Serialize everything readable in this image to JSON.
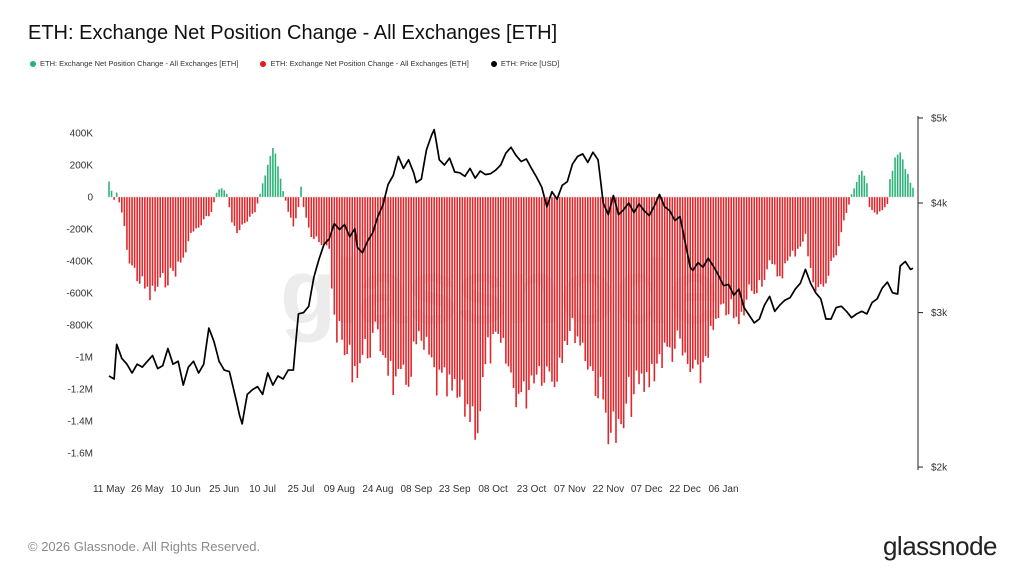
{
  "title": "ETH: Exchange Net Position Change - All Exchanges [ETH]",
  "legend": [
    {
      "label": "ETH: Exchange Net Position Change - All Exchanges [ETH]",
      "color": "#1fb57a"
    },
    {
      "label": "ETH: Exchange Net Position Change - All Exchanges [ETH]",
      "color": "#e31a1c"
    },
    {
      "label": "ETH: Price [USD]",
      "color": "#000000"
    }
  ],
  "footer": "© 2026 Glassnode. All Rights Reserved.",
  "logo": "glassnode",
  "watermark": "glassnode",
  "colors": {
    "positive": "#2ab477",
    "negative": "#e0262a",
    "price": "#000000"
  },
  "chart_data": {
    "type": "bar",
    "x_start": "2025-05-11",
    "x_end": "2026-01-14",
    "x_ticks": [
      "11 May",
      "26 May",
      "10 Jun",
      "25 Jun",
      "10 Jul",
      "25 Jul",
      "09 Aug",
      "24 Aug",
      "08 Sep",
      "23 Sep",
      "08 Oct",
      "23 Oct",
      "07 Nov",
      "22 Nov",
      "07 Dec",
      "22 Dec",
      "06 Jan"
    ],
    "y_left_ticks": [
      "400K",
      "200K",
      "0",
      "-200K",
      "-400K",
      "-600K",
      "-800K",
      "-1M",
      "-1.2M",
      "-1.4M",
      "-1.6M"
    ],
    "ylim_left": [
      -1650000,
      480000
    ],
    "y_right_ticks": [
      "$5k",
      "$4k",
      "$3k",
      "$2k"
    ],
    "y_right_scale": "log",
    "ylim_right": [
      2000,
      5000
    ],
    "series": [
      {
        "name": "ETH: Exchange Net Position Change - All Exchanges [ETH]",
        "axis": "left",
        "anchors": [
          [
            0,
            100000
          ],
          [
            2,
            -20000
          ],
          [
            3,
            30000
          ],
          [
            5,
            -100000
          ],
          [
            8,
            -420000
          ],
          [
            12,
            -540000
          ],
          [
            16,
            -640000
          ],
          [
            20,
            -560000
          ],
          [
            24,
            -500000
          ],
          [
            28,
            -430000
          ],
          [
            31,
            -300000
          ],
          [
            33,
            -200000
          ],
          [
            35,
            -210000
          ],
          [
            37,
            -150000
          ],
          [
            40,
            -100000
          ],
          [
            42,
            30000
          ],
          [
            44,
            60000
          ],
          [
            46,
            20000
          ],
          [
            48,
            -160000
          ],
          [
            50,
            -220000
          ],
          [
            53,
            -180000
          ],
          [
            57,
            -100000
          ],
          [
            60,
            80000
          ],
          [
            62,
            210000
          ],
          [
            64,
            320000
          ],
          [
            66,
            200000
          ],
          [
            68,
            40000
          ],
          [
            70,
            -90000
          ],
          [
            72,
            -200000
          ],
          [
            74,
            -60000
          ],
          [
            75,
            60000
          ],
          [
            76,
            -60000
          ],
          [
            79,
            -250000
          ],
          [
            83,
            -320000
          ],
          [
            86,
            -320000
          ],
          [
            88,
            -800000
          ],
          [
            92,
            -1000000
          ],
          [
            96,
            -1100000
          ],
          [
            100,
            -1000000
          ],
          [
            104,
            -900000
          ],
          [
            108,
            -1000000
          ],
          [
            112,
            -1250000
          ],
          [
            116,
            -1200000
          ],
          [
            120,
            -950000
          ],
          [
            124,
            -1000000
          ],
          [
            128,
            -1200000
          ],
          [
            132,
            -1250000
          ],
          [
            136,
            -1300000
          ],
          [
            140,
            -1350000
          ],
          [
            144,
            -1450000
          ],
          [
            148,
            -1000000
          ],
          [
            152,
            -950000
          ],
          [
            155,
            -1050000
          ],
          [
            158,
            -1220000
          ],
          [
            162,
            -1300000
          ],
          [
            166,
            -1100000
          ],
          [
            170,
            -1100000
          ],
          [
            174,
            -1150000
          ],
          [
            178,
            -900000
          ],
          [
            182,
            -850000
          ],
          [
            186,
            -1000000
          ],
          [
            190,
            -1180000
          ],
          [
            194,
            -1400000
          ],
          [
            197,
            -1500000
          ],
          [
            200,
            -1570000
          ],
          [
            203,
            -1300000
          ],
          [
            206,
            -1250000
          ],
          [
            210,
            -1200000
          ],
          [
            214,
            -1050000
          ],
          [
            218,
            -1000000
          ],
          [
            222,
            -950000
          ],
          [
            226,
            -1100000
          ],
          [
            230,
            -1200000
          ],
          [
            234,
            -950000
          ],
          [
            238,
            -800000
          ],
          [
            242,
            -700000
          ],
          [
            246,
            -850000
          ],
          [
            250,
            -600000
          ],
          [
            254,
            -550000
          ],
          [
            258,
            -450000
          ],
          [
            262,
            -500000
          ],
          [
            266,
            -400000
          ],
          [
            270,
            -300000
          ],
          [
            272,
            -250000
          ],
          [
            274,
            -500000
          ],
          [
            276,
            -550000
          ],
          [
            279,
            -600000
          ],
          [
            282,
            -450000
          ],
          [
            285,
            -300000
          ],
          [
            287,
            -150000
          ],
          [
            289,
            -50000
          ],
          [
            290,
            20000
          ],
          [
            292,
            100000
          ],
          [
            294,
            160000
          ],
          [
            296,
            90000
          ],
          [
            297,
            -60000
          ],
          [
            299,
            -110000
          ],
          [
            302,
            -90000
          ],
          [
            304,
            -50000
          ],
          [
            305,
            120000
          ],
          [
            307,
            230000
          ],
          [
            309,
            280000
          ],
          [
            311,
            200000
          ],
          [
            313,
            100000
          ],
          [
            314,
            60000
          ]
        ]
      },
      {
        "name": "ETH: Price [USD]",
        "axis": "right",
        "anchors": [
          [
            0,
            2540
          ],
          [
            2,
            2520
          ],
          [
            3,
            2760
          ],
          [
            5,
            2660
          ],
          [
            7,
            2620
          ],
          [
            9,
            2560
          ],
          [
            11,
            2620
          ],
          [
            13,
            2600
          ],
          [
            15,
            2640
          ],
          [
            17,
            2680
          ],
          [
            19,
            2590
          ],
          [
            21,
            2610
          ],
          [
            23,
            2730
          ],
          [
            25,
            2620
          ],
          [
            27,
            2640
          ],
          [
            29,
            2480
          ],
          [
            31,
            2600
          ],
          [
            33,
            2640
          ],
          [
            35,
            2560
          ],
          [
            37,
            2620
          ],
          [
            39,
            2880
          ],
          [
            41,
            2780
          ],
          [
            43,
            2640
          ],
          [
            45,
            2580
          ],
          [
            47,
            2570
          ],
          [
            49,
            2430
          ],
          [
            51,
            2290
          ],
          [
            52,
            2240
          ],
          [
            54,
            2420
          ],
          [
            56,
            2450
          ],
          [
            58,
            2470
          ],
          [
            60,
            2420
          ],
          [
            62,
            2560
          ],
          [
            64,
            2480
          ],
          [
            66,
            2540
          ],
          [
            68,
            2520
          ],
          [
            70,
            2580
          ],
          [
            72,
            2580
          ],
          [
            74,
            2990
          ],
          [
            76,
            3000
          ],
          [
            78,
            3050
          ],
          [
            80,
            3290
          ],
          [
            82,
            3450
          ],
          [
            84,
            3590
          ],
          [
            86,
            3640
          ],
          [
            88,
            3790
          ],
          [
            90,
            3730
          ],
          [
            92,
            3780
          ],
          [
            94,
            3660
          ],
          [
            96,
            3740
          ],
          [
            97,
            3560
          ],
          [
            99,
            3510
          ],
          [
            101,
            3620
          ],
          [
            103,
            3700
          ],
          [
            105,
            3860
          ],
          [
            107,
            3980
          ],
          [
            109,
            4200
          ],
          [
            111,
            4300
          ],
          [
            113,
            4520
          ],
          [
            115,
            4380
          ],
          [
            117,
            4480
          ],
          [
            119,
            4330
          ],
          [
            120,
            4220
          ],
          [
            122,
            4260
          ],
          [
            124,
            4600
          ],
          [
            126,
            4780
          ],
          [
            127,
            4850
          ],
          [
            129,
            4480
          ],
          [
            131,
            4420
          ],
          [
            133,
            4500
          ],
          [
            135,
            4340
          ],
          [
            137,
            4330
          ],
          [
            139,
            4290
          ],
          [
            141,
            4380
          ],
          [
            143,
            4270
          ],
          [
            145,
            4350
          ],
          [
            147,
            4310
          ],
          [
            149,
            4320
          ],
          [
            151,
            4360
          ],
          [
            153,
            4420
          ],
          [
            155,
            4560
          ],
          [
            157,
            4630
          ],
          [
            159,
            4530
          ],
          [
            161,
            4460
          ],
          [
            163,
            4490
          ],
          [
            165,
            4380
          ],
          [
            167,
            4280
          ],
          [
            169,
            4170
          ],
          [
            171,
            3960
          ],
          [
            173,
            4120
          ],
          [
            175,
            4040
          ],
          [
            177,
            4190
          ],
          [
            179,
            4230
          ],
          [
            181,
            4430
          ],
          [
            183,
            4520
          ],
          [
            185,
            4550
          ],
          [
            187,
            4450
          ],
          [
            189,
            4570
          ],
          [
            191,
            4480
          ],
          [
            193,
            4000
          ],
          [
            195,
            3880
          ],
          [
            197,
            4080
          ],
          [
            199,
            3880
          ],
          [
            201,
            3930
          ],
          [
            203,
            4000
          ],
          [
            205,
            3900
          ],
          [
            207,
            3990
          ],
          [
            209,
            3920
          ],
          [
            211,
            3870
          ],
          [
            213,
            3970
          ],
          [
            215,
            4090
          ],
          [
            217,
            3960
          ],
          [
            219,
            3920
          ],
          [
            221,
            3820
          ],
          [
            223,
            3860
          ],
          [
            225,
            3610
          ],
          [
            227,
            3380
          ],
          [
            228,
            3350
          ],
          [
            230,
            3420
          ],
          [
            232,
            3380
          ],
          [
            234,
            3460
          ],
          [
            236,
            3390
          ],
          [
            238,
            3310
          ],
          [
            240,
            3220
          ],
          [
            242,
            3230
          ],
          [
            244,
            3140
          ],
          [
            246,
            3190
          ],
          [
            248,
            3040
          ],
          [
            250,
            2980
          ],
          [
            252,
            2920
          ],
          [
            254,
            2950
          ],
          [
            256,
            3060
          ],
          [
            258,
            3130
          ],
          [
            260,
            3010
          ],
          [
            262,
            3060
          ],
          [
            264,
            3100
          ],
          [
            266,
            3120
          ],
          [
            268,
            3190
          ],
          [
            270,
            3240
          ],
          [
            272,
            3360
          ],
          [
            274,
            3240
          ],
          [
            276,
            3160
          ],
          [
            278,
            3110
          ],
          [
            280,
            2950
          ],
          [
            282,
            2950
          ],
          [
            284,
            3040
          ],
          [
            286,
            3050
          ],
          [
            288,
            3010
          ],
          [
            290,
            2960
          ],
          [
            292,
            2990
          ],
          [
            294,
            3010
          ],
          [
            296,
            2990
          ],
          [
            298,
            3080
          ],
          [
            300,
            3110
          ],
          [
            302,
            3200
          ],
          [
            304,
            3250
          ],
          [
            306,
            3160
          ],
          [
            308,
            3150
          ],
          [
            309,
            3390
          ],
          [
            311,
            3430
          ],
          [
            313,
            3360
          ],
          [
            314,
            3370
          ]
        ]
      }
    ],
    "xlabel": "",
    "ylabel": "",
    "grid": false,
    "legend_position": "top-left"
  }
}
